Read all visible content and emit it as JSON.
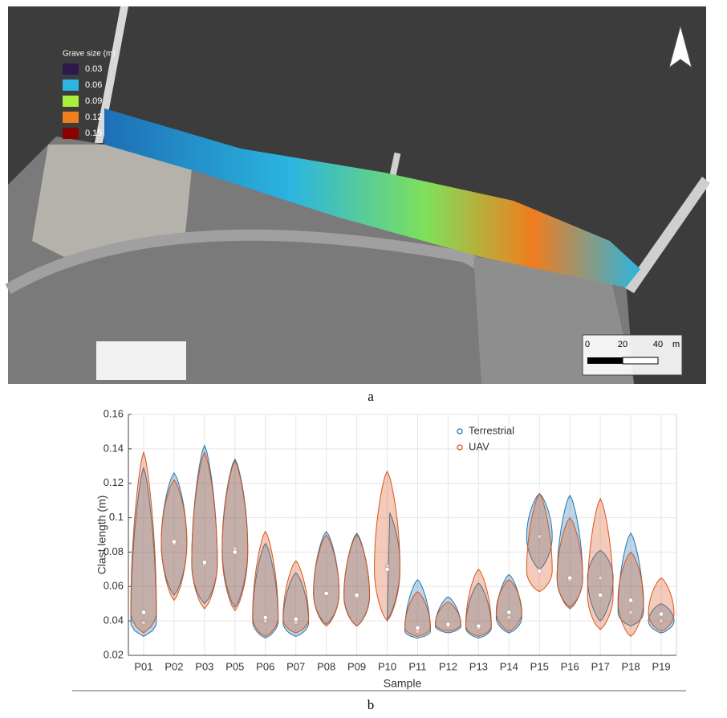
{
  "map": {
    "legend": {
      "title": "Grave size (m)",
      "items": [
        {
          "value": 0.03,
          "color": "#2d1a4a"
        },
        {
          "value": 0.06,
          "color": "#2bb5e0"
        },
        {
          "value": 0.09,
          "color": "#a8f03c"
        },
        {
          "value": 0.12,
          "color": "#f07d1e"
        },
        {
          "value": 0.15,
          "color": "#8b0000"
        }
      ]
    },
    "scale_bar": {
      "ticks": [
        0,
        20,
        40
      ],
      "unit": "m"
    }
  },
  "caption_a": "a",
  "chart_data": {
    "type": "violin",
    "xlabel": "Sample",
    "ylabel": "Clast length (m)",
    "categories": [
      "P01",
      "P02",
      "P03",
      "P05",
      "P06",
      "P07",
      "P08",
      "P09",
      "P10",
      "P11",
      "P12",
      "P13",
      "P14",
      "P15",
      "P16",
      "P17",
      "P18",
      "P19"
    ],
    "ylim": [
      0.02,
      0.16
    ],
    "yticks": [
      0.02,
      0.04,
      0.06,
      0.08,
      0.1,
      0.12,
      0.14,
      0.16
    ],
    "grid": true,
    "series": [
      {
        "name": "Terrestrial",
        "color": "#1f77b4",
        "min": [
          0.031,
          0.055,
          0.05,
          0.048,
          0.03,
          0.031,
          0.038,
          0.037,
          0.041,
          0.03,
          0.033,
          0.03,
          0.033,
          0.07,
          0.048,
          0.04,
          0.037,
          0.033
        ],
        "max": [
          0.129,
          0.126,
          0.142,
          0.134,
          0.085,
          0.068,
          0.092,
          0.091,
          0.105,
          0.064,
          0.054,
          0.062,
          0.067,
          0.114,
          0.113,
          0.081,
          0.091,
          0.05
        ],
        "median": [
          0.039,
          0.085,
          0.073,
          0.082,
          0.04,
          0.039,
          0.056,
          0.054,
          0.072,
          0.034,
          0.037,
          0.036,
          0.042,
          0.089,
          0.064,
          0.065,
          0.045,
          0.04
        ]
      },
      {
        "name": "UAV",
        "color": "#d95319",
        "min": [
          0.033,
          0.052,
          0.047,
          0.046,
          0.031,
          0.033,
          0.037,
          0.037,
          0.04,
          0.031,
          0.034,
          0.031,
          0.034,
          0.057,
          0.047,
          0.035,
          0.031,
          0.034
        ],
        "max": [
          0.138,
          0.122,
          0.138,
          0.133,
          0.092,
          0.075,
          0.09,
          0.09,
          0.127,
          0.057,
          0.051,
          0.07,
          0.064,
          0.114,
          0.1,
          0.111,
          0.08,
          0.065
        ],
        "median": [
          0.045,
          0.086,
          0.074,
          0.08,
          0.042,
          0.041,
          0.056,
          0.055,
          0.07,
          0.036,
          0.038,
          0.037,
          0.045,
          0.069,
          0.065,
          0.055,
          0.052,
          0.044
        ]
      }
    ]
  },
  "caption_b": "b"
}
